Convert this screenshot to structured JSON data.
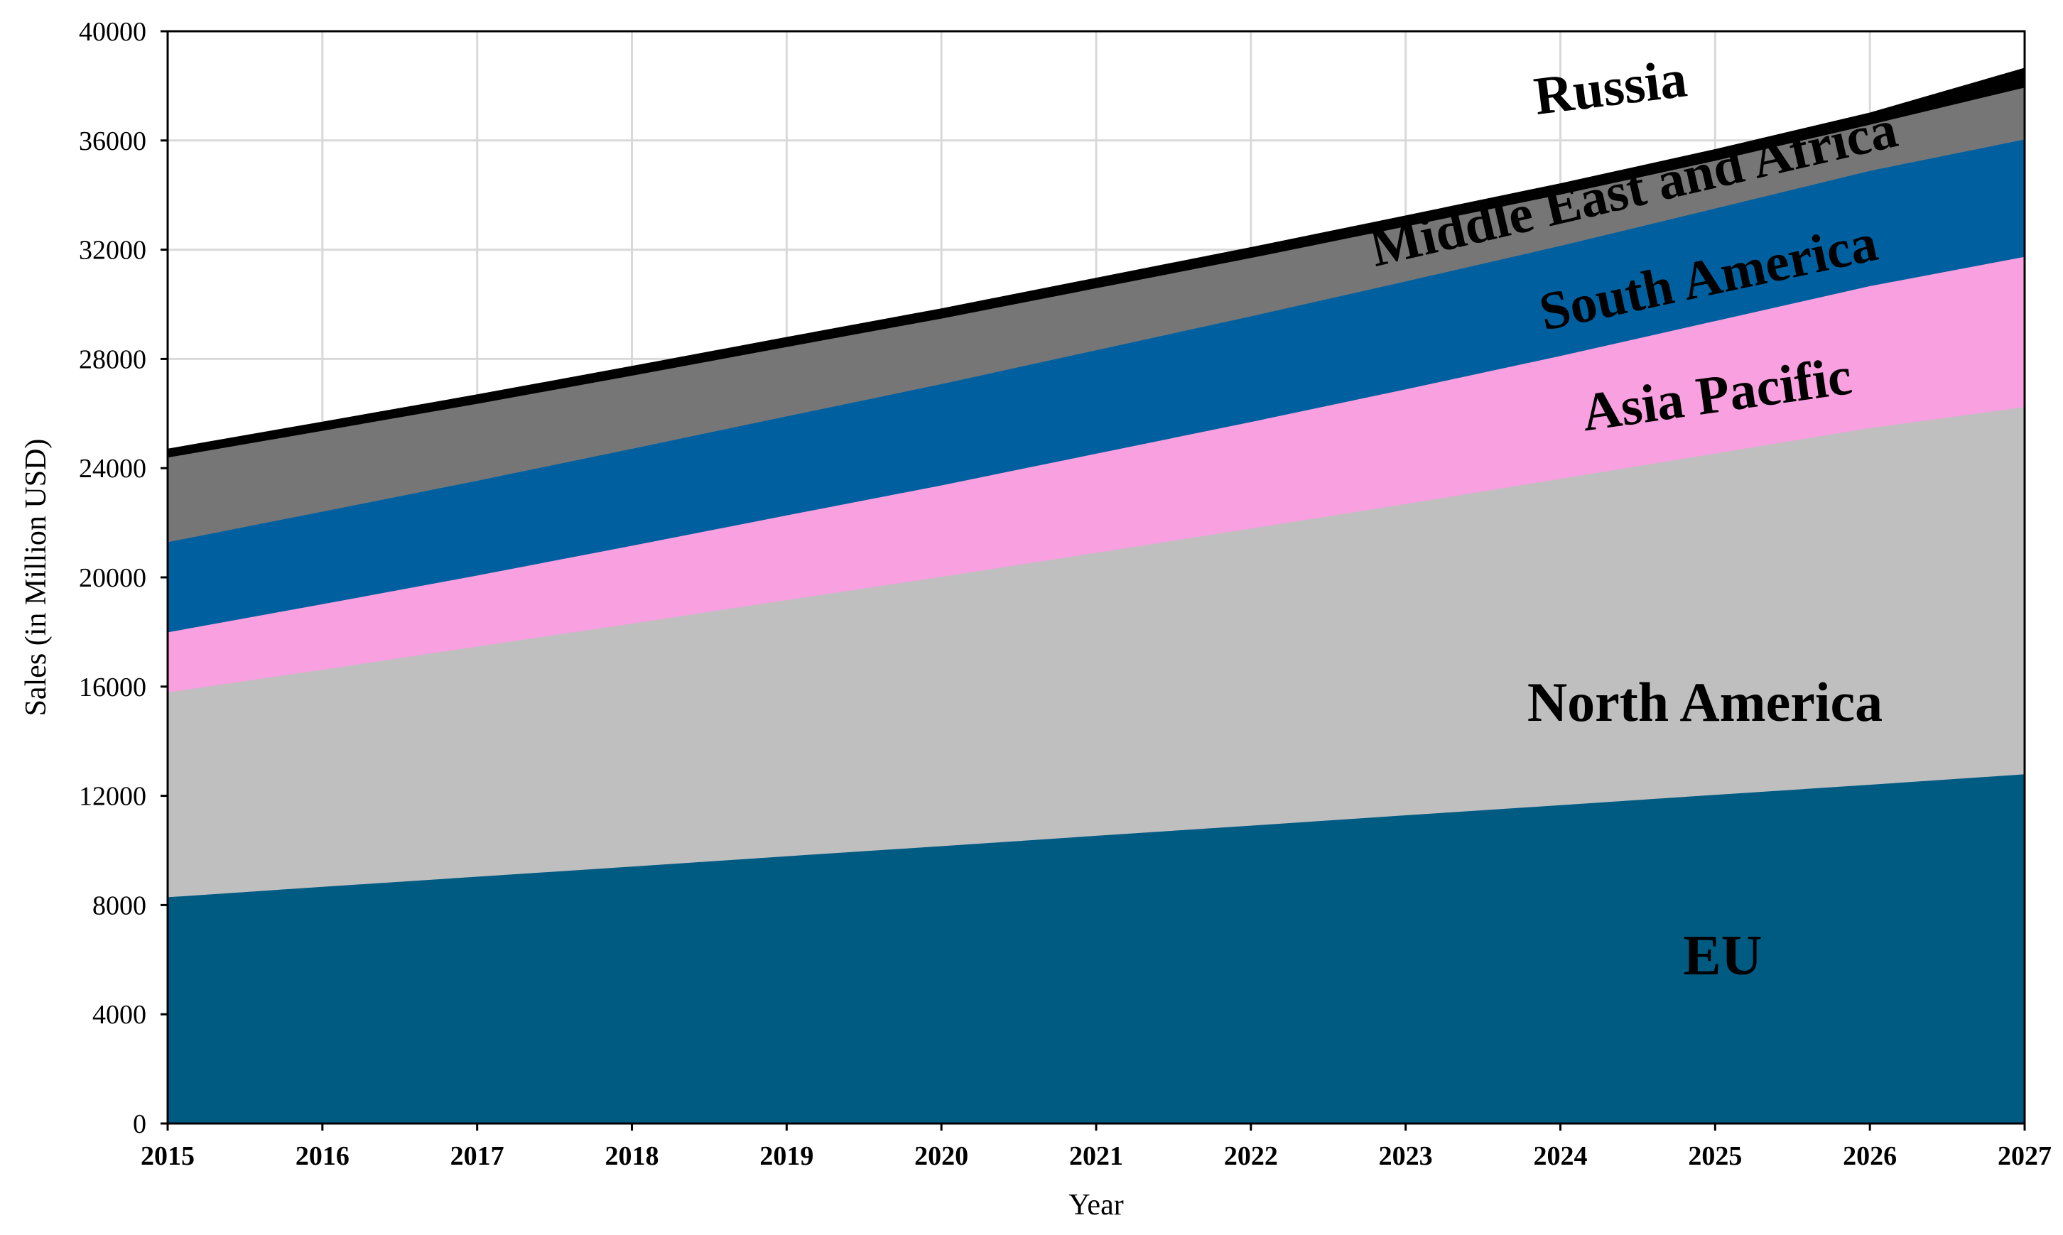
{
  "chart_data": {
    "type": "area",
    "stacked": true,
    "title": "",
    "xlabel": "Year",
    "ylabel": "Sales (in Million USD)",
    "x": [
      2015,
      2016,
      2017,
      2018,
      2019,
      2020,
      2021,
      2022,
      2023,
      2024,
      2025,
      2026,
      2027
    ],
    "x_tick_labels": [
      "2015",
      "2016",
      "2017",
      "2018",
      "2019",
      "2020",
      "2021",
      "2022",
      "2023",
      "2024",
      "2025",
      "2026",
      "2027"
    ],
    "ylim": [
      0,
      40000
    ],
    "y_ticks": [
      0,
      4000,
      8000,
      12000,
      16000,
      20000,
      24000,
      28000,
      32000,
      36000,
      40000
    ],
    "y_tick_labels": [
      "0",
      "4000",
      "8000",
      "12000",
      "16000",
      "20000",
      "24000",
      "28000",
      "32000",
      "36000",
      "40000"
    ],
    "grid": true,
    "legend": "none",
    "series": [
      {
        "name": "EU",
        "color": "#005b82",
        "values": [
          8300,
          8680,
          9050,
          9420,
          9800,
          10170,
          10550,
          10920,
          11300,
          11670,
          12050,
          12420,
          12800
        ]
      },
      {
        "name": "North America",
        "color": "#bfbfbf",
        "values": [
          7500,
          7950,
          8430,
          8900,
          9380,
          9860,
          10360,
          10880,
          11400,
          11950,
          12500,
          13060,
          13450
        ]
      },
      {
        "name": "Asia Pacific",
        "color": "#f9a0e0",
        "values": [
          2200,
          2400,
          2600,
          2850,
          3100,
          3350,
          3630,
          3900,
          4200,
          4500,
          4850,
          5200,
          5500
        ]
      },
      {
        "name": "South America",
        "color": "#00609f",
        "values": [
          3300,
          3390,
          3470,
          3550,
          3630,
          3710,
          3790,
          3870,
          3950,
          4030,
          4120,
          4220,
          4300
        ]
      },
      {
        "name": "Middle East and Africa",
        "color": "#767676",
        "values": [
          3100,
          2960,
          2820,
          2680,
          2540,
          2400,
          2270,
          2140,
          2010,
          1880,
          1750,
          1690,
          1900
        ]
      },
      {
        "name": "Russia",
        "color": "#000000",
        "values": [
          300,
          310,
          320,
          330,
          340,
          350,
          360,
          370,
          380,
          390,
          400,
          420,
          700
        ]
      }
    ],
    "labels": [
      {
        "text": "Russia",
        "series": "Russia"
      },
      {
        "text": "Middle East and Africa",
        "series": "Middle East and Africa"
      },
      {
        "text": "South America",
        "series": "South America"
      },
      {
        "text": "Asia Pacific",
        "series": "Asia Pacific"
      },
      {
        "text": "North America",
        "series": "North America"
      },
      {
        "text": "EU",
        "series": "EU"
      }
    ]
  }
}
